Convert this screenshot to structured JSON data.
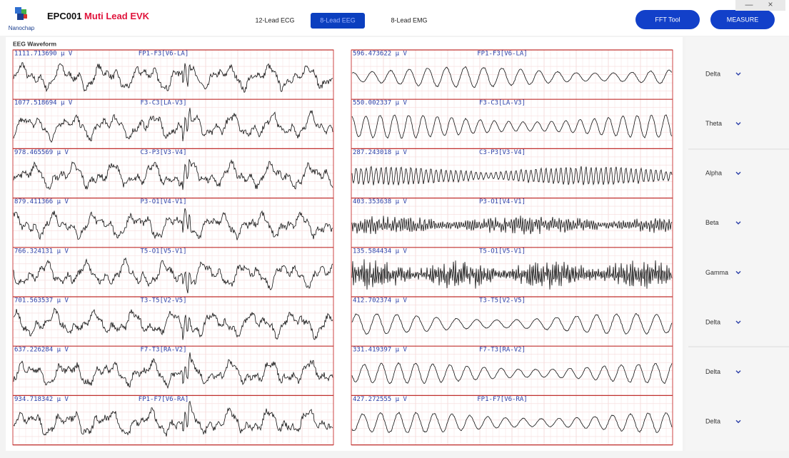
{
  "header": {
    "logo_text": "Nanochap",
    "title": "EPC001",
    "subtitle": "Muti Lead EVK",
    "tabs": [
      "12-Lead ECG",
      "8-Lead EEG",
      "8-Lead EMG"
    ],
    "active_tab": 1,
    "buttons": [
      "FFT Tool",
      "MEASURE"
    ],
    "window_controls": [
      "—",
      "×"
    ]
  },
  "panel": {
    "title": "EEG Waveform",
    "left": [
      {
        "amplitude": "1111.713690 μ V",
        "lead": "FP1-F3[V6-LA]"
      },
      {
        "amplitude": "1077.518694 μ V",
        "lead": "F3-C3[LA-V3]"
      },
      {
        "amplitude": "978.465569 μ V",
        "lead": "C3-P3[V3-V4]"
      },
      {
        "amplitude": "879.411366 μ V",
        "lead": "P3-O1[V4-V1]"
      },
      {
        "amplitude": "766.324131 μ V",
        "lead": "T5-O1[V5-V1]"
      },
      {
        "amplitude": "701.563537 μ V",
        "lead": "T3-T5[V2-V5]"
      },
      {
        "amplitude": "637.226284 μ V",
        "lead": "F7-T3[RA-V2]"
      },
      {
        "amplitude": "934.718342 μ V",
        "lead": "FP1-F7[V6-RA]"
      }
    ],
    "right": [
      {
        "amplitude": "596.473622 μ V",
        "lead": "FP1-F3[V6-LA]"
      },
      {
        "amplitude": "550.002337 μ V",
        "lead": "F3-C3[LA-V3]"
      },
      {
        "amplitude": "287.243018 μ V",
        "lead": "C3-P3[V3-V4]"
      },
      {
        "amplitude": "403.353638 μ V",
        "lead": "P3-O1[V4-V1]"
      },
      {
        "amplitude": "135.584434 μ V",
        "lead": "T5-O1[V5-V1]"
      },
      {
        "amplitude": "412.702374 μ V",
        "lead": "T3-T5[V2-V5]"
      },
      {
        "amplitude": "331.419397 μ V",
        "lead": "F7-T3[RA-V2]"
      },
      {
        "amplitude": "427.272555 μ V",
        "lead": "FP1-F7[V6-RA]"
      }
    ]
  },
  "sidebar": {
    "bands": [
      "Delta",
      "Theta",
      "Alpha",
      "Beta",
      "Gamma",
      "Delta",
      "Delta",
      "Delta"
    ]
  }
}
